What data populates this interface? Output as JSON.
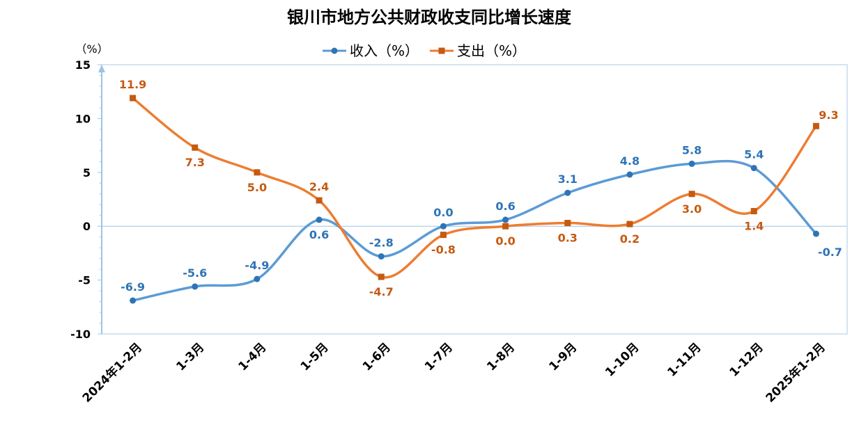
{
  "chart_data": {
    "type": "line",
    "title": "银川市地方公共财政收支同比增长速度",
    "ylabel": "（%）",
    "xlabel": "",
    "ylim": [
      -10,
      15
    ],
    "yticks": [
      15,
      10,
      5,
      0,
      -5,
      -10
    ],
    "legend_position": "top-center",
    "grid": false,
    "categories": [
      "2024年1-2月",
      "1-3月",
      "1-4月",
      "1-5月",
      "1-6月",
      "1-7月",
      "1-8月",
      "1-9月",
      "1-10月",
      "1-11月",
      "1-12月",
      "2025年1-2月"
    ],
    "series": [
      {
        "name": "收入（%）",
        "color": "#5b9bd5",
        "label_color": "#2e74b5",
        "marker": "circle",
        "values": [
          -6.9,
          -5.6,
          -4.9,
          0.6,
          -2.8,
          0.0,
          0.6,
          3.1,
          4.8,
          5.8,
          5.4,
          -0.7
        ],
        "labels": [
          "-6.9",
          "-5.6",
          "-4.9",
          "0.6",
          "-2.8",
          "0.0",
          "0.6",
          "3.1",
          "4.8",
          "5.8",
          "5.4",
          "-0.7"
        ]
      },
      {
        "name": "支出（%）",
        "color": "#ed7d31",
        "label_color": "#c55a11",
        "marker": "square",
        "values": [
          11.9,
          7.3,
          5.0,
          2.4,
          -4.7,
          -0.8,
          0.0,
          0.3,
          0.2,
          3.0,
          1.4,
          9.3
        ],
        "labels": [
          "11.9",
          "7.3",
          "5.0",
          "2.4",
          "-4.7",
          "-0.8",
          "0.0",
          "0.3",
          "0.2",
          "3.0",
          "1.4",
          "9.3"
        ]
      }
    ]
  }
}
